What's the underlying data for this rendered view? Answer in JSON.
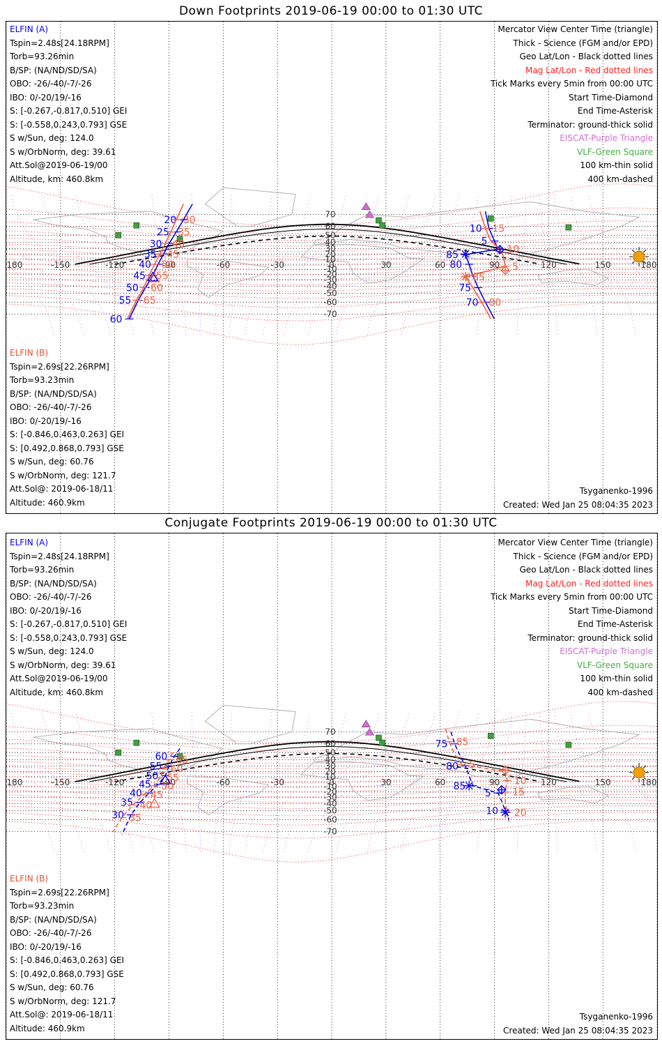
{
  "titles": {
    "top": "Down Footprints 2019-06-19 00:00 to 01:30 UTC",
    "bottom": "Conjugate Footprints 2019-06-19 00:00 to 01:30 UTC"
  },
  "elfin_a": {
    "header": "ELFIN (A)",
    "lines": [
      "Tspin=2.48s[24.18RPM]",
      "Torb=93.26min",
      "B/SP: (NA/ND/SD/SA)",
      "OBO: -26/-40/-7/-26",
      "IBO: 0/-20/19/-16",
      "S: [-0.267,-0.817,0.510] GEI",
      "S: [-0.558,0.243,0.793] GSE",
      "S w/Sun, deg: 124.0",
      "S w/OrbNorm, deg: 39.61",
      "Att.Sol@2019-06-19/00",
      "Altitude, km: 460.8km"
    ]
  },
  "elfin_b": {
    "header": "ELFIN (B)",
    "lines": [
      "Tspin=2.69s[22.26RPM]",
      "Torb=93.23min",
      "B/SP: (NA/ND/SD/SA)",
      "OBO: -26/-40/-7/-26",
      "IBO: 0/-20/19/-16",
      "S: [-0.846,0.463,0.263] GEI",
      "S: [0.492,0.868,0.793] GSE",
      "S w/Sun, deg: 60.76",
      "S w/OrbNorm, deg: 121.7",
      "Att.Sol@: 2019-06-18/11",
      "Altitude: 460.9km"
    ]
  },
  "legend": {
    "lines": [
      {
        "text": "Mercator View Center Time (triangle)",
        "color": "black"
      },
      {
        "text": "Thick - Science (FGM and/or EPD)",
        "color": "black"
      },
      {
        "text": "Geo Lat/Lon - Black dotted lines",
        "color": "black"
      },
      {
        "text": "Mag Lat/Lon - Red dotted lines",
        "color": "red"
      },
      {
        "text": "Tick Marks every 5min from 00:00 UTC",
        "color": "black"
      },
      {
        "text": "Start Time-Diamond",
        "color": "black"
      },
      {
        "text": "End Time-Asterisk",
        "color": "black"
      },
      {
        "text": "Terminator: ground-thick solid",
        "color": "black"
      },
      {
        "text": "EISCAT-Purple Triangle",
        "color": "purple"
      },
      {
        "text": "VLF-Green Square",
        "color": "green"
      },
      {
        "text": "100 km-thin solid",
        "color": "black"
      },
      {
        "text": "400 km-dashed",
        "color": "black"
      }
    ]
  },
  "footer": {
    "model": "Tsyganenko-1996",
    "created": "Created: Wed Jan 25 08:04:35 2023"
  },
  "axis": {
    "lon_ticks": [
      "180",
      "-150",
      "-120",
      "-90",
      "-60",
      "-30",
      "0",
      "30",
      "60",
      "90",
      "120",
      "150",
      "180"
    ],
    "lat_ticks": [
      "70",
      "60",
      "50",
      "40",
      "30",
      "20",
      "10",
      "0",
      "-10",
      "-20",
      "-30",
      "-40",
      "-50",
      "-60",
      "-70"
    ]
  },
  "colors": {
    "elfin_a": "#0000ee",
    "elfin_b": "#f06040",
    "mag_grid": "#ff0000",
    "eiscat": "#d070d0",
    "vlf": "#40a040",
    "sun": "#f0a000"
  },
  "top_tracks": {
    "a_west_labels": [
      "20",
      "25",
      "30",
      "35",
      "40",
      "45",
      "50",
      "55",
      "60"
    ],
    "b_west_labels": [
      "30",
      "35",
      "40",
      "45",
      "50",
      "55",
      "60",
      "65"
    ],
    "a_east_labels": [
      "10",
      "5",
      "85",
      "80",
      "75",
      "70"
    ],
    "b_east_labels": [
      "15",
      "10",
      "5",
      "85",
      "80"
    ]
  },
  "bottom_tracks": {
    "a_west_labels": [
      "60",
      "55",
      "50",
      "45",
      "40",
      "35",
      "30"
    ],
    "b_west_labels": [
      "65",
      "60",
      "55",
      "50",
      "45",
      "40",
      "35"
    ],
    "a_east_labels": [
      "75",
      "80",
      "85",
      "5",
      "10"
    ],
    "b_east_labels": [
      "85",
      "5",
      "10",
      "15",
      "20"
    ]
  }
}
